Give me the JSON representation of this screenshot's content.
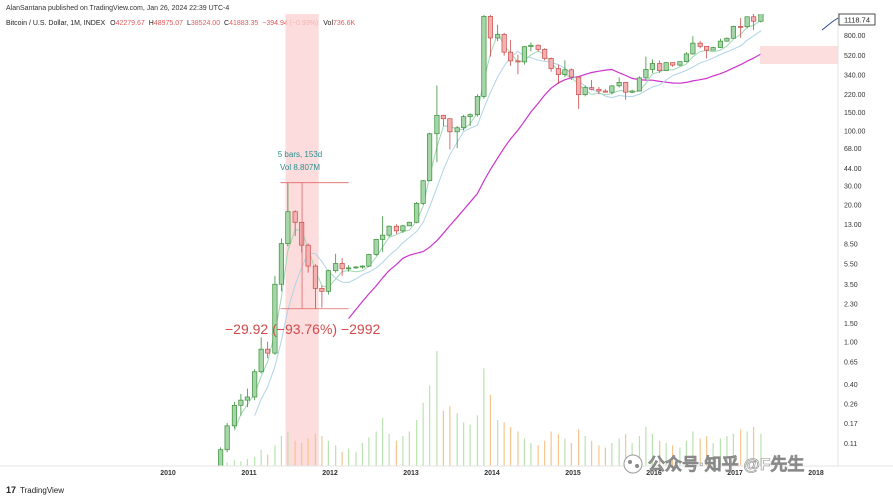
{
  "header": {
    "publisher": "AlanSantana published on TradingView.com, Jan 26, 2024 22:39 UTC-4",
    "symbol": "Bitcoin / U.S. Dollar, 1M, INDEX",
    "open_label": "O",
    "open": "42279.67",
    "high_label": "H",
    "high": "48975.07",
    "low_label": "L",
    "low": "38524.00",
    "close_label": "C",
    "close": "41883.35",
    "change": "−394.94 (−0.93%)",
    "vol_label": "Vol",
    "vol": "736.6K"
  },
  "measure": {
    "bars": "5 bars, 153d",
    "vol": "Vol 8.807M",
    "change": "−29.92 (−93.76%) −2992"
  },
  "price_badge": "1118.74",
  "footer": {
    "logo": "TradingView",
    "watermark": "公众号·知乎 @F先生"
  },
  "colors": {
    "up": "#26a69a",
    "up_fill": "#a5d6a7",
    "down": "#ef5350",
    "ma_fast": "#9fd8b4",
    "ma_slow": "#b0d4e8",
    "ma_long": "#cc33cc",
    "measure_fill": "#fbd0d0"
  },
  "chart_data": {
    "type": "candlestick",
    "scale": "log",
    "interval": "1M",
    "xlabel": "",
    "ylabel": "",
    "x_ticks": [
      "2010",
      "2011",
      "2012",
      "2013",
      "2014",
      "2015",
      "2016",
      "2017",
      "2018"
    ],
    "y_ticks": [
      "800.00",
      "520.00",
      "340.00",
      "220.00",
      "150.00",
      "100.00",
      "68.00",
      "44.00",
      "30.00",
      "20.00",
      "13.00",
      "8.50",
      "5.50",
      "3.50",
      "2.30",
      "1.50",
      "1.00",
      "0.65",
      "0.40",
      "0.26",
      "0.17",
      "0.11"
    ],
    "ylim": [
      0.09,
      1400
    ],
    "candles": [
      {
        "t": 2010.65,
        "o": 0.065,
        "h": 0.1,
        "l": 0.06,
        "c": 0.095
      },
      {
        "t": 2010.73,
        "o": 0.095,
        "h": 0.17,
        "l": 0.09,
        "c": 0.16
      },
      {
        "t": 2010.82,
        "o": 0.16,
        "h": 0.27,
        "l": 0.15,
        "c": 0.25
      },
      {
        "t": 2010.9,
        "o": 0.25,
        "h": 0.32,
        "l": 0.2,
        "c": 0.28
      },
      {
        "t": 2010.98,
        "o": 0.28,
        "h": 0.36,
        "l": 0.24,
        "c": 0.3
      },
      {
        "t": 2011.07,
        "o": 0.3,
        "h": 0.55,
        "l": 0.28,
        "c": 0.52
      },
      {
        "t": 2011.15,
        "o": 0.52,
        "h": 1.1,
        "l": 0.5,
        "c": 0.85
      },
      {
        "t": 2011.23,
        "o": 0.85,
        "h": 1.0,
        "l": 0.7,
        "c": 0.78
      },
      {
        "t": 2011.32,
        "o": 0.78,
        "h": 4.2,
        "l": 0.75,
        "c": 3.5
      },
      {
        "t": 2011.4,
        "o": 3.5,
        "h": 9.5,
        "l": 3.0,
        "c": 8.5
      },
      {
        "t": 2011.48,
        "o": 8.5,
        "h": 32.0,
        "l": 8.0,
        "c": 17.0
      },
      {
        "t": 2011.57,
        "o": 17.0,
        "h": 17.5,
        "l": 10.0,
        "c": 13.5
      },
      {
        "t": 2011.65,
        "o": 13.5,
        "h": 13.6,
        "l": 7.0,
        "c": 8.2
      },
      {
        "t": 2011.73,
        "o": 8.2,
        "h": 8.5,
        "l": 4.5,
        "c": 5.2
      },
      {
        "t": 2011.82,
        "o": 5.2,
        "h": 5.4,
        "l": 2.05,
        "c": 3.2
      },
      {
        "t": 2011.9,
        "o": 3.2,
        "h": 3.4,
        "l": 2.1,
        "c": 3.0
      },
      {
        "t": 2011.98,
        "o": 3.0,
        "h": 4.8,
        "l": 2.8,
        "c": 4.7
      },
      {
        "t": 2012.07,
        "o": 4.7,
        "h": 6.8,
        "l": 4.5,
        "c": 5.5
      },
      {
        "t": 2012.15,
        "o": 5.5,
        "h": 6.2,
        "l": 4.2,
        "c": 4.9
      },
      {
        "t": 2012.23,
        "o": 4.9,
        "h": 5.3,
        "l": 4.6,
        "c": 5.0
      },
      {
        "t": 2012.32,
        "o": 5.0,
        "h": 5.2,
        "l": 4.9,
        "c": 5.1
      },
      {
        "t": 2012.4,
        "o": 5.1,
        "h": 5.3,
        "l": 4.9,
        "c": 5.2
      },
      {
        "t": 2012.48,
        "o": 5.2,
        "h": 6.8,
        "l": 5.1,
        "c": 6.7
      },
      {
        "t": 2012.57,
        "o": 6.7,
        "h": 9.4,
        "l": 6.5,
        "c": 9.3
      },
      {
        "t": 2012.65,
        "o": 9.3,
        "h": 15.4,
        "l": 7.1,
        "c": 10.2
      },
      {
        "t": 2012.73,
        "o": 10.2,
        "h": 12.6,
        "l": 9.8,
        "c": 12.4
      },
      {
        "t": 2012.82,
        "o": 12.4,
        "h": 12.9,
        "l": 10.5,
        "c": 11.2
      },
      {
        "t": 2012.9,
        "o": 11.2,
        "h": 12.8,
        "l": 10.7,
        "c": 12.5
      },
      {
        "t": 2012.98,
        "o": 12.5,
        "h": 13.7,
        "l": 12.4,
        "c": 13.5
      },
      {
        "t": 2013.07,
        "o": 13.5,
        "h": 21.0,
        "l": 13.2,
        "c": 20.4
      },
      {
        "t": 2013.15,
        "o": 20.4,
        "h": 34.0,
        "l": 19.8,
        "c": 33.4
      },
      {
        "t": 2013.23,
        "o": 33.4,
        "h": 95.0,
        "l": 33.0,
        "c": 93.0
      },
      {
        "t": 2013.32,
        "o": 93.0,
        "h": 266.0,
        "l": 50.0,
        "c": 139.0
      },
      {
        "t": 2013.4,
        "o": 139.0,
        "h": 140.0,
        "l": 110.0,
        "c": 129.0
      },
      {
        "t": 2013.48,
        "o": 129.0,
        "h": 130.0,
        "l": 66.0,
        "c": 97.0
      },
      {
        "t": 2013.57,
        "o": 97.0,
        "h": 110.0,
        "l": 68.0,
        "c": 106.0
      },
      {
        "t": 2013.65,
        "o": 106.0,
        "h": 140.0,
        "l": 100.0,
        "c": 135.0
      },
      {
        "t": 2013.73,
        "o": 135.0,
        "h": 145.0,
        "l": 110.0,
        "c": 141.0
      },
      {
        "t": 2013.82,
        "o": 141.0,
        "h": 220.0,
        "l": 135.0,
        "c": 210.0
      },
      {
        "t": 2013.9,
        "o": 210.0,
        "h": 1240.0,
        "l": 200.0,
        "c": 1200.0
      },
      {
        "t": 2013.98,
        "o": 1200.0,
        "h": 1240.0,
        "l": 500.0,
        "c": 750.0
      },
      {
        "t": 2014.07,
        "o": 750.0,
        "h": 1000.0,
        "l": 700.0,
        "c": 810.0
      },
      {
        "t": 2014.15,
        "o": 810.0,
        "h": 840.0,
        "l": 510.0,
        "c": 550.0
      },
      {
        "t": 2014.23,
        "o": 550.0,
        "h": 720.0,
        "l": 410.0,
        "c": 455.0
      },
      {
        "t": 2014.32,
        "o": 455.0,
        "h": 520.0,
        "l": 340.0,
        "c": 445.0
      },
      {
        "t": 2014.4,
        "o": 445.0,
        "h": 630.0,
        "l": 420.0,
        "c": 620.0
      },
      {
        "t": 2014.48,
        "o": 620.0,
        "h": 680.0,
        "l": 560.0,
        "c": 640.0
      },
      {
        "t": 2014.57,
        "o": 640.0,
        "h": 650.0,
        "l": 560.0,
        "c": 585.0
      },
      {
        "t": 2014.65,
        "o": 585.0,
        "h": 600.0,
        "l": 460.0,
        "c": 480.0
      },
      {
        "t": 2014.73,
        "o": 480.0,
        "h": 490.0,
        "l": 360.0,
        "c": 385.0
      },
      {
        "t": 2014.82,
        "o": 385.0,
        "h": 420.0,
        "l": 275.0,
        "c": 338.0
      },
      {
        "t": 2014.9,
        "o": 338.0,
        "h": 460.0,
        "l": 320.0,
        "c": 375.0
      },
      {
        "t": 2014.98,
        "o": 375.0,
        "h": 385.0,
        "l": 300.0,
        "c": 320.0
      },
      {
        "t": 2015.07,
        "o": 320.0,
        "h": 320.0,
        "l": 160.0,
        "c": 218.0
      },
      {
        "t": 2015.15,
        "o": 218.0,
        "h": 265.0,
        "l": 210.0,
        "c": 254.0
      },
      {
        "t": 2015.23,
        "o": 254.0,
        "h": 300.0,
        "l": 240.0,
        "c": 245.0
      },
      {
        "t": 2015.32,
        "o": 245.0,
        "h": 258.0,
        "l": 220.0,
        "c": 236.0
      },
      {
        "t": 2015.4,
        "o": 236.0,
        "h": 245.0,
        "l": 228.0,
        "c": 230.0
      },
      {
        "t": 2015.48,
        "o": 230.0,
        "h": 267.0,
        "l": 220.0,
        "c": 264.0
      },
      {
        "t": 2015.57,
        "o": 264.0,
        "h": 318.0,
        "l": 255.0,
        "c": 285.0
      },
      {
        "t": 2015.65,
        "o": 285.0,
        "h": 285.0,
        "l": 195.0,
        "c": 230.0
      },
      {
        "t": 2015.73,
        "o": 230.0,
        "h": 243.0,
        "l": 225.0,
        "c": 236.0
      },
      {
        "t": 2015.82,
        "o": 236.0,
        "h": 325.0,
        "l": 235.0,
        "c": 314.0
      },
      {
        "t": 2015.9,
        "o": 314.0,
        "h": 500.0,
        "l": 300.0,
        "c": 378.0
      },
      {
        "t": 2015.98,
        "o": 378.0,
        "h": 470.0,
        "l": 350.0,
        "c": 430.0
      },
      {
        "t": 2016.07,
        "o": 430.0,
        "h": 460.0,
        "l": 350.0,
        "c": 368.0
      },
      {
        "t": 2016.15,
        "o": 368.0,
        "h": 445.0,
        "l": 365.0,
        "c": 438.0
      },
      {
        "t": 2016.23,
        "o": 438.0,
        "h": 440.0,
        "l": 400.0,
        "c": 415.0
      },
      {
        "t": 2016.32,
        "o": 415.0,
        "h": 450.0,
        "l": 405.0,
        "c": 448.0
      },
      {
        "t": 2016.4,
        "o": 448.0,
        "h": 550.0,
        "l": 440.0,
        "c": 530.0
      },
      {
        "t": 2016.48,
        "o": 530.0,
        "h": 780.0,
        "l": 520.0,
        "c": 670.0
      },
      {
        "t": 2016.57,
        "o": 670.0,
        "h": 700.0,
        "l": 600.0,
        "c": 625.0
      },
      {
        "t": 2016.65,
        "o": 625.0,
        "h": 630.0,
        "l": 480.0,
        "c": 575.0
      },
      {
        "t": 2016.73,
        "o": 575.0,
        "h": 620.0,
        "l": 570.0,
        "c": 609.0
      },
      {
        "t": 2016.82,
        "o": 609.0,
        "h": 740.0,
        "l": 605.0,
        "c": 700.0
      },
      {
        "t": 2016.9,
        "o": 700.0,
        "h": 760.0,
        "l": 690.0,
        "c": 745.0
      },
      {
        "t": 2016.98,
        "o": 745.0,
        "h": 980.0,
        "l": 740.0,
        "c": 965.0
      },
      {
        "t": 2017.07,
        "o": 965.0,
        "h": 1160.0,
        "l": 750.0,
        "c": 960.0
      },
      {
        "t": 2017.15,
        "o": 960.0,
        "h": 1200.0,
        "l": 920.0,
        "c": 1190.0
      },
      {
        "t": 2017.23,
        "o": 1190.0,
        "h": 1300.0,
        "l": 890.0,
        "c": 1080.0
      },
      {
        "t": 2017.32,
        "o": 1080.0,
        "h": 1350.0,
        "l": 1050.0,
        "c": 1350.0
      }
    ],
    "volume": [
      {
        "t": 2010.65,
        "v": 2
      },
      {
        "t": 2010.73,
        "v": 3
      },
      {
        "t": 2010.82,
        "v": 5
      },
      {
        "t": 2010.9,
        "v": 4
      },
      {
        "t": 2010.98,
        "v": 6
      },
      {
        "t": 2011.07,
        "v": 8
      },
      {
        "t": 2011.15,
        "v": 14
      },
      {
        "t": 2011.23,
        "v": 10
      },
      {
        "t": 2011.32,
        "v": 18
      },
      {
        "t": 2011.4,
        "v": 26
      },
      {
        "t": 2011.48,
        "v": 30
      },
      {
        "t": 2011.57,
        "v": 22
      },
      {
        "t": 2011.65,
        "v": 20
      },
      {
        "t": 2011.73,
        "v": 24
      },
      {
        "t": 2011.82,
        "v": 28
      },
      {
        "t": 2011.9,
        "v": 26
      },
      {
        "t": 2011.98,
        "v": 22
      },
      {
        "t": 2012.07,
        "v": 18
      },
      {
        "t": 2012.15,
        "v": 12
      },
      {
        "t": 2012.23,
        "v": 15
      },
      {
        "t": 2012.32,
        "v": 12
      },
      {
        "t": 2012.4,
        "v": 20
      },
      {
        "t": 2012.48,
        "v": 25
      },
      {
        "t": 2012.57,
        "v": 30
      },
      {
        "t": 2012.65,
        "v": 42
      },
      {
        "t": 2012.73,
        "v": 28
      },
      {
        "t": 2012.82,
        "v": 22
      },
      {
        "t": 2012.9,
        "v": 26
      },
      {
        "t": 2012.98,
        "v": 30
      },
      {
        "t": 2013.07,
        "v": 40
      },
      {
        "t": 2013.15,
        "v": 55
      },
      {
        "t": 2013.23,
        "v": 70
      },
      {
        "t": 2013.32,
        "v": 100
      },
      {
        "t": 2013.4,
        "v": 48
      },
      {
        "t": 2013.48,
        "v": 52
      },
      {
        "t": 2013.57,
        "v": 46
      },
      {
        "t": 2013.65,
        "v": 38
      },
      {
        "t": 2013.73,
        "v": 36
      },
      {
        "t": 2013.82,
        "v": 44
      },
      {
        "t": 2013.9,
        "v": 85
      },
      {
        "t": 2013.98,
        "v": 62
      },
      {
        "t": 2014.07,
        "v": 40
      },
      {
        "t": 2014.15,
        "v": 38
      },
      {
        "t": 2014.23,
        "v": 34
      },
      {
        "t": 2014.32,
        "v": 30
      },
      {
        "t": 2014.4,
        "v": 24
      },
      {
        "t": 2014.48,
        "v": 20
      },
      {
        "t": 2014.57,
        "v": 18
      },
      {
        "t": 2014.65,
        "v": 22
      },
      {
        "t": 2014.73,
        "v": 30
      },
      {
        "t": 2014.82,
        "v": 28
      },
      {
        "t": 2014.9,
        "v": 24
      },
      {
        "t": 2014.98,
        "v": 20
      },
      {
        "t": 2015.07,
        "v": 32
      },
      {
        "t": 2015.15,
        "v": 26
      },
      {
        "t": 2015.23,
        "v": 22
      },
      {
        "t": 2015.32,
        "v": 18
      },
      {
        "t": 2015.4,
        "v": 16
      },
      {
        "t": 2015.48,
        "v": 20
      },
      {
        "t": 2015.57,
        "v": 24
      },
      {
        "t": 2015.65,
        "v": 28
      },
      {
        "t": 2015.73,
        "v": 20
      },
      {
        "t": 2015.82,
        "v": 26
      },
      {
        "t": 2015.9,
        "v": 34
      },
      {
        "t": 2015.98,
        "v": 28
      },
      {
        "t": 2016.07,
        "v": 22
      },
      {
        "t": 2016.15,
        "v": 20
      },
      {
        "t": 2016.23,
        "v": 18
      },
      {
        "t": 2016.32,
        "v": 16
      },
      {
        "t": 2016.4,
        "v": 22
      },
      {
        "t": 2016.48,
        "v": 30
      },
      {
        "t": 2016.57,
        "v": 24
      },
      {
        "t": 2016.65,
        "v": 26
      },
      {
        "t": 2016.73,
        "v": 20
      },
      {
        "t": 2016.82,
        "v": 24
      },
      {
        "t": 2016.9,
        "v": 26
      },
      {
        "t": 2016.98,
        "v": 28
      },
      {
        "t": 2017.07,
        "v": 32
      },
      {
        "t": 2017.15,
        "v": 30
      },
      {
        "t": 2017.23,
        "v": 34
      },
      {
        "t": 2017.32,
        "v": 28
      }
    ],
    "measure_range": {
      "t_start": 2011.45,
      "t_end": 2011.86,
      "price_high": 32.0,
      "price_low": 2.05
    }
  }
}
